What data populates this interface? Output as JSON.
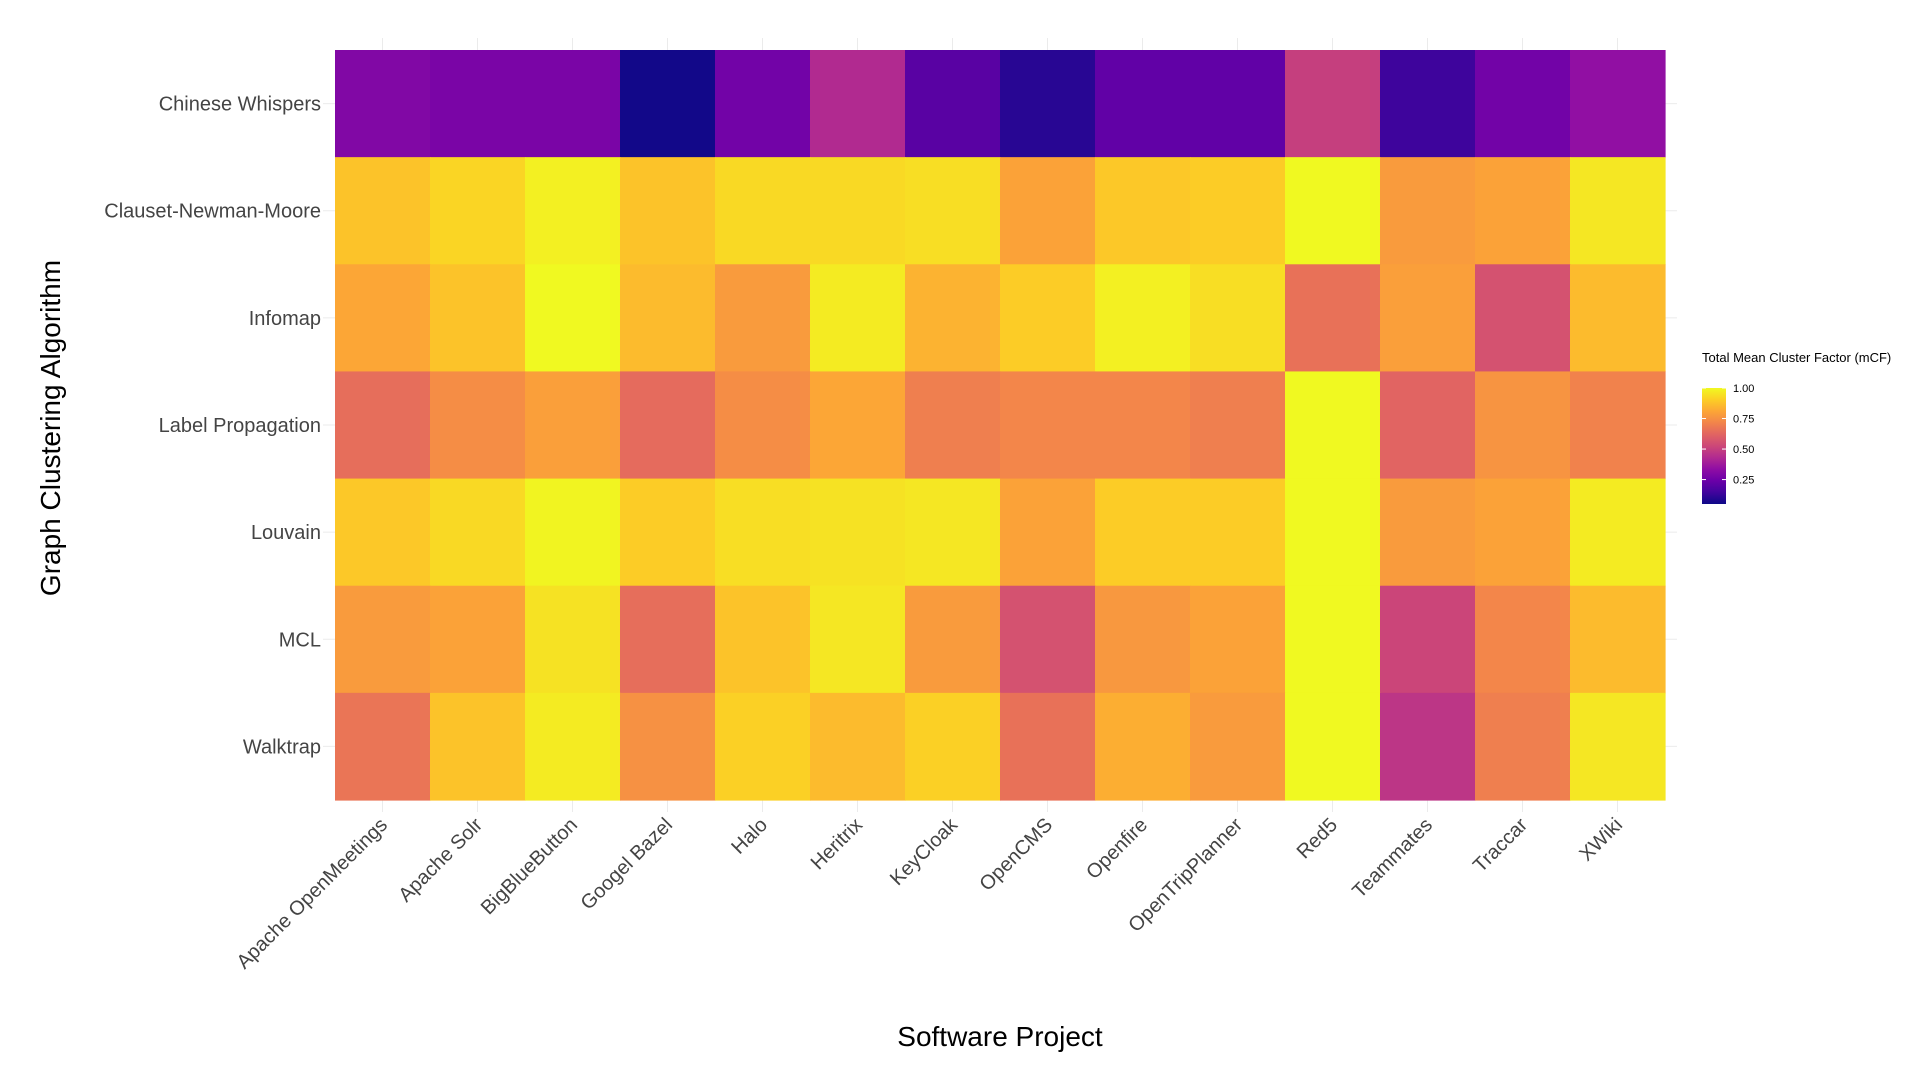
{
  "chart_data": {
    "type": "heatmap",
    "xlabel": "Software Project",
    "ylabel": "Graph Clustering Algorithm",
    "x_categories": [
      "Apache OpenMeetings",
      "Apache Solr",
      "BigBlueButton",
      "Googel Bazel",
      "Halo",
      "Heritrix",
      "KeyCloak",
      "OpenCMS",
      "Openfire",
      "OpenTripPlanner",
      "Red5",
      "Teammates",
      "Traccar",
      "XWiki"
    ],
    "y_categories": [
      "Chinese Whispers",
      "Clauset-Newman-Moore",
      "Infomap",
      "Label Propagation",
      "Louvain",
      "MCL",
      "Walktrap"
    ],
    "values": [
      [
        0.3,
        0.28,
        0.28,
        0.06,
        0.26,
        0.43,
        0.2,
        0.1,
        0.22,
        0.22,
        0.5,
        0.14,
        0.26,
        0.34
      ],
      [
        0.88,
        0.92,
        0.98,
        0.88,
        0.93,
        0.93,
        0.94,
        0.8,
        0.89,
        0.9,
        1.0,
        0.78,
        0.8,
        0.96
      ],
      [
        0.81,
        0.88,
        1.0,
        0.86,
        0.78,
        0.97,
        0.84,
        0.9,
        0.98,
        0.94,
        0.66,
        0.79,
        0.56,
        0.86
      ],
      [
        0.65,
        0.74,
        0.79,
        0.64,
        0.74,
        0.81,
        0.7,
        0.72,
        0.72,
        0.7,
        1.0,
        0.62,
        0.76,
        0.71
      ],
      [
        0.89,
        0.93,
        0.99,
        0.9,
        0.94,
        0.95,
        0.96,
        0.8,
        0.9,
        0.9,
        1.0,
        0.78,
        0.8,
        0.97
      ],
      [
        0.78,
        0.8,
        0.95,
        0.65,
        0.88,
        0.96,
        0.78,
        0.56,
        0.77,
        0.8,
        1.0,
        0.52,
        0.72,
        0.86
      ],
      [
        0.67,
        0.88,
        0.97,
        0.75,
        0.91,
        0.86,
        0.91,
        0.66,
        0.83,
        0.78,
        1.0,
        0.47,
        0.7,
        0.96
      ]
    ],
    "colorbar": {
      "title": "Total Mean Cluster Factor (mCF)",
      "ticks": [
        1.0,
        0.75,
        0.5,
        0.25
      ],
      "tick_labels": [
        "1.00",
        "0.75",
        "0.50",
        "0.25"
      ],
      "range": [
        0.05,
        1.0
      ],
      "colormap": "plasma"
    },
    "legend_position": "right",
    "grid": true
  }
}
